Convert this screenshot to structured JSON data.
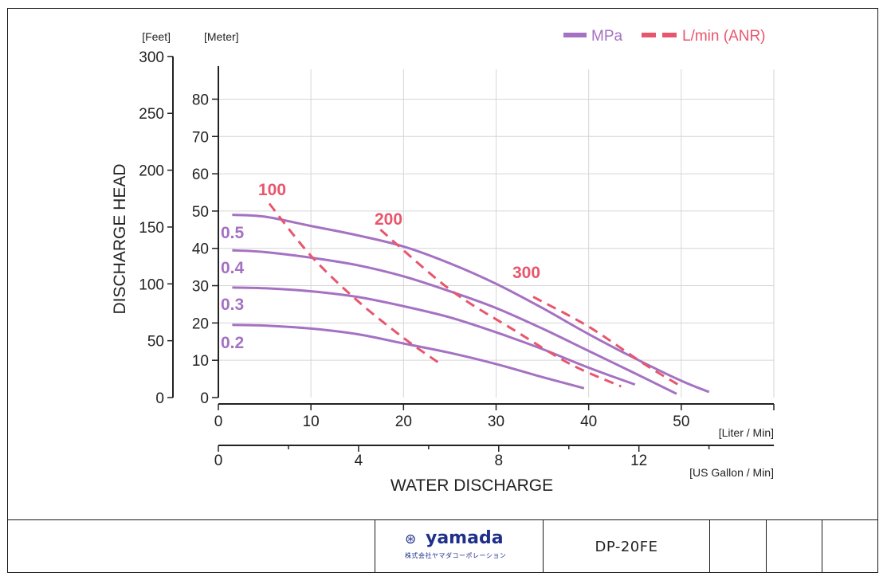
{
  "chart_data": {
    "type": "line",
    "ylabel": "DISCHARGE HEAD",
    "xlabel": "WATER DISCHARGE",
    "y_units": [
      "[Feet]",
      "[Meter]"
    ],
    "x_units": [
      "[Liter / Min]",
      "[US Gallon / Min]"
    ],
    "x_ticks_lpm": [
      0,
      10,
      20,
      30,
      40,
      50
    ],
    "x_ticks_gpm": [
      0,
      4,
      8,
      12
    ],
    "y_ticks_feet": [
      0,
      50,
      100,
      150,
      200,
      250,
      300
    ],
    "y_ticks_meter": [
      0,
      10,
      20,
      30,
      40,
      50,
      60,
      70,
      80
    ],
    "xlim_lpm": [
      0,
      60
    ],
    "ylim_meter": [
      0,
      88
    ],
    "grid": true,
    "legend_position": "top-right",
    "legend": [
      {
        "label": "MPa",
        "style": "solid",
        "color": "#a571c2"
      },
      {
        "label": "L/min (ANR)",
        "style": "dashed",
        "color": "#e8566d"
      }
    ],
    "series": [
      {
        "name": "0.5",
        "style": "solid",
        "color": "#a571c2",
        "points": [
          [
            1.5,
            49
          ],
          [
            5,
            48.5
          ],
          [
            10,
            46
          ],
          [
            15,
            43.5
          ],
          [
            20,
            40.5
          ],
          [
            25,
            36
          ],
          [
            30,
            30.5
          ],
          [
            35,
            24
          ],
          [
            40,
            17
          ],
          [
            45,
            10.5
          ],
          [
            50,
            4.5
          ],
          [
            53,
            1.5
          ]
        ]
      },
      {
        "name": "0.4",
        "style": "solid",
        "color": "#a571c2",
        "points": [
          [
            1.5,
            39.5
          ],
          [
            5,
            39
          ],
          [
            10,
            37.5
          ],
          [
            15,
            35.5
          ],
          [
            20,
            32.5
          ],
          [
            25,
            28.5
          ],
          [
            30,
            24
          ],
          [
            35,
            18.5
          ],
          [
            40,
            12.5
          ],
          [
            45,
            6.5
          ],
          [
            49.5,
            1
          ]
        ]
      },
      {
        "name": "0.3",
        "style": "solid",
        "color": "#a571c2",
        "points": [
          [
            1.5,
            29.5
          ],
          [
            5,
            29.3
          ],
          [
            10,
            28.5
          ],
          [
            15,
            27
          ],
          [
            20,
            24.5
          ],
          [
            25,
            21.5
          ],
          [
            30,
            17.5
          ],
          [
            35,
            13
          ],
          [
            40,
            8
          ],
          [
            45,
            3.5
          ]
        ]
      },
      {
        "name": "0.2",
        "style": "solid",
        "color": "#a571c2",
        "points": [
          [
            1.5,
            19.5
          ],
          [
            5,
            19.3
          ],
          [
            10,
            18.5
          ],
          [
            15,
            17
          ],
          [
            20,
            14.5
          ],
          [
            25,
            12
          ],
          [
            30,
            9
          ],
          [
            35,
            5.5
          ],
          [
            39.5,
            2.5
          ]
        ]
      },
      {
        "name": "100",
        "style": "dashed",
        "color": "#e8566d",
        "points": [
          [
            5.5,
            52
          ],
          [
            10,
            38
          ],
          [
            15,
            26
          ],
          [
            20,
            16
          ],
          [
            24,
            9
          ]
        ]
      },
      {
        "name": "200",
        "style": "dashed",
        "color": "#e8566d",
        "points": [
          [
            17.5,
            45
          ],
          [
            25,
            29
          ],
          [
            32,
            18
          ],
          [
            38,
            9
          ],
          [
            43.5,
            3
          ]
        ]
      },
      {
        "name": "300",
        "style": "dashed",
        "color": "#e8566d",
        "points": [
          [
            34,
            27
          ],
          [
            40,
            19
          ],
          [
            46,
            9
          ],
          [
            50,
            3
          ]
        ]
      }
    ],
    "solid_labels": [
      "0.5",
      "0.4",
      "0.3",
      "0.2"
    ],
    "dashed_labels": [
      "100",
      "200",
      "300"
    ]
  },
  "footer": {
    "logo_word": "yamada",
    "logo_sub": "株式会社ヤマダコーポレーション",
    "model": "DP-20FE"
  }
}
